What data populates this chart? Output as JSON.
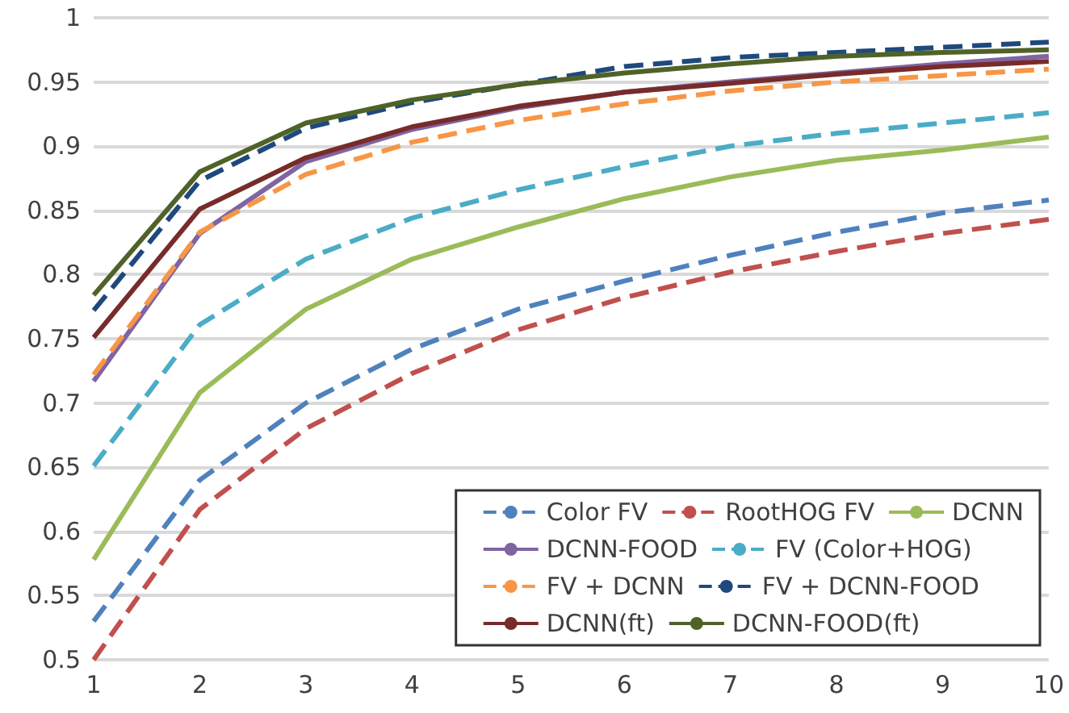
{
  "chart_data": {
    "type": "line",
    "categories": [
      "1",
      "2",
      "3",
      "4",
      "5",
      "6",
      "7",
      "8",
      "9",
      "10"
    ],
    "ylim": [
      0.5,
      1
    ],
    "yticks": [
      0.5,
      0.55,
      0.6,
      0.65,
      0.7,
      0.75,
      0.8,
      0.85,
      0.9,
      0.95,
      1
    ],
    "grid": "y",
    "legend": "bottom right",
    "marker": "none",
    "series": [
      {
        "name": "Color FV",
        "color": "#4f81bd",
        "line_style": "dashed",
        "values": [
          0.53,
          0.64,
          0.7,
          0.742,
          0.773,
          0.795,
          0.815,
          0.833,
          0.848,
          0.858
        ]
      },
      {
        "name": "RootHOG FV",
        "color": "#c0504d",
        "line_style": "dashed",
        "values": [
          0.5,
          0.617,
          0.68,
          0.723,
          0.757,
          0.782,
          0.802,
          0.818,
          0.832,
          0.843
        ]
      },
      {
        "name": "DCNN",
        "color": "#9bbb59",
        "line_style": "solid",
        "values": [
          0.578,
          0.708,
          0.773,
          0.812,
          0.837,
          0.859,
          0.876,
          0.889,
          0.897,
          0.907
        ]
      },
      {
        "name": "DCNN-FOOD",
        "color": "#8064a2",
        "line_style": "solid",
        "values": [
          0.717,
          0.832,
          0.888,
          0.913,
          0.93,
          0.942,
          0.95,
          0.957,
          0.964,
          0.97
        ]
      },
      {
        "name": "FV (Color+HOG)",
        "color": "#4bacc6",
        "line_style": "dashed",
        "values": [
          0.651,
          0.761,
          0.812,
          0.844,
          0.866,
          0.884,
          0.9,
          0.91,
          0.918,
          0.926
        ]
      },
      {
        "name": "FV + DCNN",
        "color": "#f79646",
        "line_style": "dashed",
        "values": [
          0.722,
          0.833,
          0.878,
          0.903,
          0.92,
          0.933,
          0.943,
          0.95,
          0.955,
          0.96
        ]
      },
      {
        "name": "FV + DCNN-FOOD",
        "color": "#1f497d",
        "line_style": "dashed",
        "values": [
          0.772,
          0.873,
          0.914,
          0.934,
          0.948,
          0.962,
          0.969,
          0.973,
          0.977,
          0.981
        ]
      },
      {
        "name": "DCNN(ft)",
        "color": "#772c2a",
        "line_style": "solid",
        "values": [
          0.751,
          0.851,
          0.891,
          0.915,
          0.931,
          0.942,
          0.949,
          0.956,
          0.962,
          0.966
        ]
      },
      {
        "name": "DCNN-FOOD(ft)",
        "color": "#4f6228",
        "line_style": "solid",
        "values": [
          0.784,
          0.88,
          0.918,
          0.936,
          0.948,
          0.957,
          0.964,
          0.97,
          0.973,
          0.975
        ]
      }
    ]
  }
}
